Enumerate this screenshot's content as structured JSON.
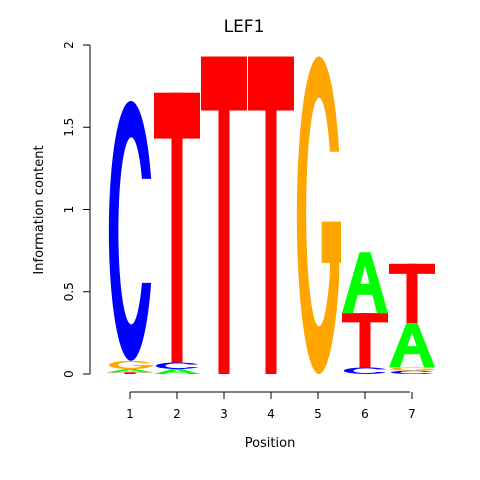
{
  "chart_data": {
    "type": "sequence-logo",
    "title": "LEF1",
    "xlabel": "Position",
    "ylabel": "Information content",
    "ylim": [
      0,
      2
    ],
    "y_ticks": [
      "0",
      "0.5",
      "1",
      "1.5",
      "2"
    ],
    "x_ticks": [
      "1",
      "2",
      "3",
      "4",
      "5",
      "6",
      "7"
    ],
    "base_colors": {
      "A": "#00ff00",
      "C": "#0000ff",
      "G": "#ffa500",
      "T": "#ff0000"
    },
    "positions": [
      {
        "position": "1",
        "stack": [
          {
            "base": "T",
            "height": 0.01
          },
          {
            "base": "A",
            "height": 0.02
          },
          {
            "base": "G",
            "height": 0.05
          },
          {
            "base": "C",
            "height": 1.58
          }
        ]
      },
      {
        "position": "2",
        "stack": [
          {
            "base": "A",
            "height": 0.03
          },
          {
            "base": "C",
            "height": 0.04
          },
          {
            "base": "T",
            "height": 1.64
          }
        ]
      },
      {
        "position": "3",
        "stack": [
          {
            "base": "T",
            "height": 1.93
          }
        ]
      },
      {
        "position": "4",
        "stack": [
          {
            "base": "T",
            "height": 1.93
          }
        ]
      },
      {
        "position": "5",
        "stack": [
          {
            "base": "G",
            "height": 1.93
          }
        ]
      },
      {
        "position": "6",
        "stack": [
          {
            "base": "C",
            "height": 0.04
          },
          {
            "base": "T",
            "height": 0.33
          },
          {
            "base": "A",
            "height": 0.37
          }
        ]
      },
      {
        "position": "7",
        "stack": [
          {
            "base": "C",
            "height": 0.02
          },
          {
            "base": "G",
            "height": 0.02
          },
          {
            "base": "A",
            "height": 0.27
          },
          {
            "base": "T",
            "height": 0.36
          }
        ]
      }
    ]
  }
}
